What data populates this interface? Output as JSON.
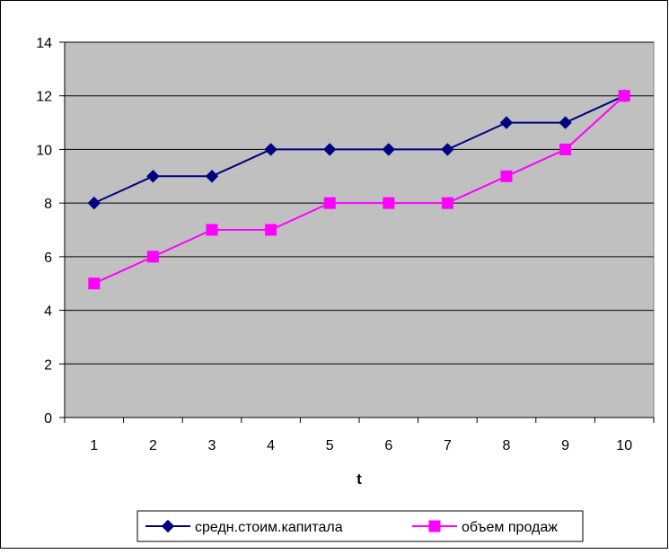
{
  "chart_data": {
    "type": "line",
    "categories": [
      "1",
      "2",
      "3",
      "4",
      "5",
      "6",
      "7",
      "8",
      "9",
      "10"
    ],
    "series": [
      {
        "name": "средн.стоим.капитала",
        "values": [
          8,
          9,
          9,
          10,
          10,
          10,
          10,
          11,
          11,
          12
        ],
        "color": "#000080",
        "marker": "diamond"
      },
      {
        "name": "объем продаж",
        "values": [
          5,
          6,
          7,
          7,
          8,
          8,
          8,
          9,
          10,
          12
        ],
        "color": "#FF00FF",
        "marker": "square"
      }
    ],
    "xlabel": "t",
    "ylabel": "",
    "ylim": [
      0,
      14
    ],
    "yticks": [
      "0",
      "2",
      "4",
      "6",
      "8",
      "10",
      "12",
      "14"
    ],
    "grid": "horizontal",
    "legend": "bottom",
    "plot_background": "#C0C0C0"
  }
}
